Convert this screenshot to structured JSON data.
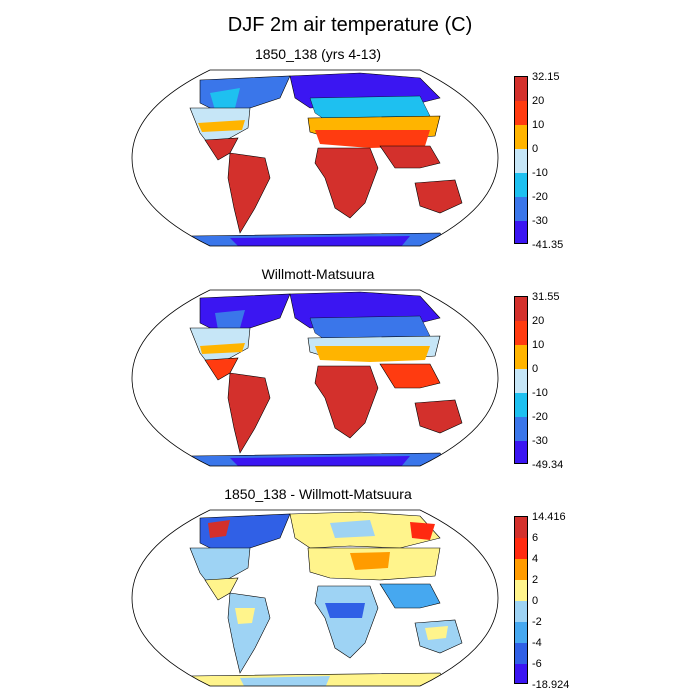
{
  "title": "DJF 2m air temperature (C)",
  "panels": [
    {
      "title": "1850_138 (yrs 4-13)",
      "colorbar": {
        "labels": [
          "32.15",
          "20",
          "10",
          "0",
          "-10",
          "-20",
          "-30",
          "-41.35"
        ],
        "colors": [
          "#d3302c",
          "#ff3b10",
          "#ffb400",
          "#c6e6f7",
          "#1ec0f0",
          "#3a76ea",
          "#3b16f2"
        ]
      }
    },
    {
      "title": "Willmott-Matsuura",
      "colorbar": {
        "labels": [
          "31.55",
          "20",
          "10",
          "0",
          "-10",
          "-20",
          "-30",
          "-49.34"
        ],
        "colors": [
          "#d3302c",
          "#ff3b10",
          "#ffb400",
          "#c6e6f7",
          "#1ec0f0",
          "#3a76ea",
          "#3b16f2"
        ]
      }
    },
    {
      "title": "1850_138 - Willmott-Matsuura",
      "colorbar": {
        "labels": [
          "14.416",
          "6",
          "4",
          "2",
          "0",
          "-2",
          "-4",
          "-6",
          "-18.924"
        ],
        "colors": [
          "#d3302c",
          "#ff2a10",
          "#ff9b00",
          "#fff48c",
          "#9ed3f4",
          "#46a8f0",
          "#3060e6",
          "#3b16f2"
        ]
      }
    }
  ]
}
